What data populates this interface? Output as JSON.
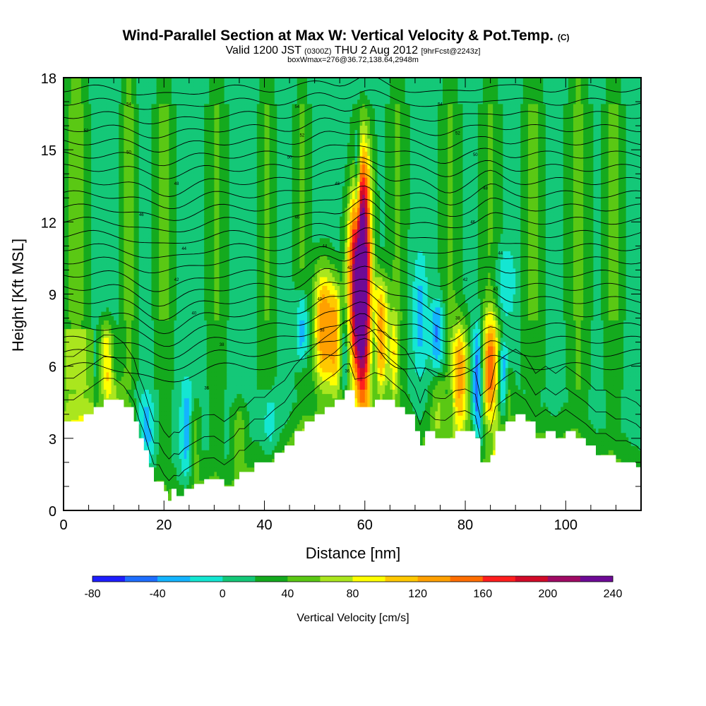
{
  "chart_data": {
    "type": "heatmap",
    "title": "Wind-Parallel Section at Max W: Vertical Velocity & Pot.Temp.",
    "title_suffix": "(C)",
    "subtitle": {
      "main1": "Valid 1200 JST",
      "tz": "(0300Z)",
      "main2": "THU 2 Aug 2012",
      "fcst": "[9hrFcst@2243z]"
    },
    "subtitle2": "boxWmax=276@36.72,138.64,2948m",
    "xlabel": "Distance [nm]",
    "ylabel": "Height [Kft MSL]",
    "xlim": [
      0,
      115
    ],
    "ylim": [
      0,
      18
    ],
    "xticks": [
      0,
      20,
      40,
      60,
      80,
      100
    ],
    "yticks": [
      0,
      3,
      6,
      9,
      12,
      15,
      18
    ],
    "colorbar": {
      "label": "Vertical Velocity [cm/s]",
      "min": -80,
      "max": 240,
      "step": 20,
      "tick_values": [
        -80,
        -40,
        0,
        40,
        80,
        120,
        160,
        200,
        240
      ],
      "colors": [
        "#1e1eff",
        "#1e6eff",
        "#14b4ff",
        "#14e6d2",
        "#14c878",
        "#14aa1e",
        "#5ac814",
        "#aae61e",
        "#ffff00",
        "#ffc800",
        "#ffa000",
        "#ff6e00",
        "#ff1e1e",
        "#d20a28",
        "#a00a64",
        "#6e0a96"
      ]
    },
    "terrain_kft": [
      [
        0,
        3.7
      ],
      [
        2,
        3.7
      ],
      [
        4,
        4.0
      ],
      [
        6,
        4.3
      ],
      [
        8,
        4.6
      ],
      [
        10,
        4.6
      ],
      [
        12,
        4.3
      ],
      [
        14,
        3.7
      ],
      [
        15,
        3.0
      ],
      [
        16,
        2.5
      ],
      [
        17,
        1.8
      ],
      [
        18,
        1.2
      ],
      [
        19,
        1.2
      ],
      [
        20,
        0.8
      ],
      [
        20.8,
        0.4
      ],
      [
        21.5,
        0.9
      ],
      [
        22.5,
        0.6
      ],
      [
        24,
        0.9
      ],
      [
        26,
        1.1
      ],
      [
        28,
        1.3
      ],
      [
        30,
        1.3
      ],
      [
        32,
        1.0
      ],
      [
        34,
        1.3
      ],
      [
        35,
        1.6
      ],
      [
        36,
        1.6
      ],
      [
        38,
        2.0
      ],
      [
        40,
        2.0
      ],
      [
        42,
        2.4
      ],
      [
        44,
        2.7
      ],
      [
        46,
        3.3
      ],
      [
        48,
        3.7
      ],
      [
        50,
        4.0
      ],
      [
        52,
        4.3
      ],
      [
        54,
        4.6
      ],
      [
        56,
        5.0
      ],
      [
        57,
        5.0
      ],
      [
        58,
        4.3
      ],
      [
        60,
        4.3
      ],
      [
        62,
        4.6
      ],
      [
        64,
        4.6
      ],
      [
        66,
        4.3
      ],
      [
        68,
        4.0
      ],
      [
        70,
        3.3
      ],
      [
        71,
        2.7
      ],
      [
        72,
        3.3
      ],
      [
        74,
        3.0
      ],
      [
        76,
        3.0
      ],
      [
        78,
        3.3
      ],
      [
        80,
        3.3
      ],
      [
        82,
        3.0
      ],
      [
        83,
        2.0
      ],
      [
        85,
        2.3
      ],
      [
        86,
        3.3
      ],
      [
        88,
        3.7
      ],
      [
        90,
        4.0
      ],
      [
        92,
        3.7
      ],
      [
        94,
        3.0
      ],
      [
        96,
        3.3
      ],
      [
        98,
        3.0
      ],
      [
        100,
        3.3
      ],
      [
        102,
        3.0
      ],
      [
        104,
        2.7
      ],
      [
        106,
        2.3
      ],
      [
        108,
        2.3
      ],
      [
        110,
        2.0
      ],
      [
        112,
        2.0
      ],
      [
        114,
        1.8
      ],
      [
        115,
        1.6
      ]
    ],
    "updrafts": [
      {
        "x": 59.6,
        "bot": 4.0,
        "top": 15.2,
        "peak": 230,
        "w": 1.7
      },
      {
        "x": 57.8,
        "bot": 5.8,
        "top": 13.0,
        "peak": 120,
        "w": 1.6
      },
      {
        "x": 51.8,
        "bot": 5.0,
        "top": 10.2,
        "peak": 120,
        "w": 2.0
      },
      {
        "x": 54.2,
        "bot": 5.0,
        "top": 9.5,
        "peak": 85,
        "w": 1.2
      },
      {
        "x": 63.2,
        "bot": 5.0,
        "top": 9.7,
        "peak": 115,
        "w": 1.5
      },
      {
        "x": 65.8,
        "bot": 4.6,
        "top": 8.2,
        "peak": 60,
        "w": 0.8
      },
      {
        "x": 79.0,
        "bot": 3.3,
        "top": 7.8,
        "peak": 110,
        "w": 1.6
      },
      {
        "x": 85.0,
        "bot": 3.5,
        "top": 8.2,
        "peak": 115,
        "w": 1.7
      },
      {
        "x": 8.6,
        "bot": 4.8,
        "top": 7.8,
        "peak": 85,
        "w": 1.3
      },
      {
        "x": 35.0,
        "bot": 1.6,
        "top": 4.5,
        "peak": 40,
        "w": 1.4
      },
      {
        "x": 26.0,
        "bot": 1.2,
        "top": 4.5,
        "peak": 40,
        "w": 1.1
      },
      {
        "x": 10.0,
        "bot": 3.6,
        "top": 5.6,
        "peak": 30,
        "w": 2.0
      },
      {
        "x": 74.5,
        "bot": 3.0,
        "top": 5.5,
        "peak": 45,
        "w": 1.5
      },
      {
        "x": 88.5,
        "bot": 4.0,
        "top": 6.0,
        "peak": 35,
        "w": 1.0
      }
    ],
    "downdrafts": [
      {
        "x": 16.5,
        "bot": 1.2,
        "top": 5.0,
        "peak": -30,
        "w": 1.6
      },
      {
        "x": 24.5,
        "bot": 1.0,
        "top": 5.5,
        "peak": -35,
        "w": 1.2
      },
      {
        "x": 47.5,
        "bot": 6.0,
        "top": 9.2,
        "peak": -50,
        "w": 1.2
      },
      {
        "x": 56.0,
        "bot": 4.6,
        "top": 8.5,
        "peak": -25,
        "w": 0.8
      },
      {
        "x": 61.8,
        "bot": 4.6,
        "top": 8.5,
        "peak": -30,
        "w": 0.7
      },
      {
        "x": 74.5,
        "bot": 6.0,
        "top": 8.8,
        "peak": -45,
        "w": 1.3
      },
      {
        "x": 82.5,
        "bot": 3.0,
        "top": 7.8,
        "peak": -65,
        "w": 1.0
      },
      {
        "x": 87.5,
        "bot": 4.0,
        "top": 7.0,
        "peak": -55,
        "w": 0.9
      },
      {
        "x": 71.0,
        "bot": 5.5,
        "top": 10.8,
        "peak": -25,
        "w": 1.4
      },
      {
        "x": 88.0,
        "bot": 8.0,
        "top": 11.0,
        "peak": -20,
        "w": 2.0
      },
      {
        "x": 58.5,
        "bot": 11.0,
        "top": 15.8,
        "peak": -70,
        "w": 0.6
      },
      {
        "x": 41.0,
        "bot": 2.0,
        "top": 5.0,
        "peak": -20,
        "w": 1.5
      }
    ],
    "background_bands": [
      {
        "x": 2.5,
        "amp": 40,
        "w": 2.2
      },
      {
        "x": 13.0,
        "amp": 40,
        "w": 1.5
      },
      {
        "x": 20.0,
        "amp": 32,
        "w": 1.8
      },
      {
        "x": 30.5,
        "amp": 30,
        "w": 1.8
      },
      {
        "x": 40.5,
        "amp": 30,
        "w": 1.6
      },
      {
        "x": 47.5,
        "amp": 28,
        "w": 1.5
      },
      {
        "x": 66.5,
        "amp": 30,
        "w": 1.8
      },
      {
        "x": 77.0,
        "amp": 30,
        "w": 1.8
      },
      {
        "x": 85.0,
        "amp": 28,
        "w": 2.0
      },
      {
        "x": 93.5,
        "amp": 32,
        "w": 2.0
      },
      {
        "x": 102.5,
        "amp": 35,
        "w": 2.2
      },
      {
        "x": 109.5,
        "amp": 32,
        "w": 1.8
      }
    ],
    "theta_contour_labels": [
      {
        "x": 13,
        "y": 16.9,
        "t": "54"
      },
      {
        "x": 46.5,
        "y": 16.8,
        "t": "54"
      },
      {
        "x": 75,
        "y": 16.9,
        "t": "54"
      },
      {
        "x": 4.5,
        "y": 15.8,
        "t": "52"
      },
      {
        "x": 47.5,
        "y": 15.6,
        "t": "52"
      },
      {
        "x": 78.5,
        "y": 15.7,
        "t": "52"
      },
      {
        "x": 13,
        "y": 14.9,
        "t": "50"
      },
      {
        "x": 45,
        "y": 14.7,
        "t": "50"
      },
      {
        "x": 82,
        "y": 14.8,
        "t": "50"
      },
      {
        "x": 22.5,
        "y": 13.6,
        "t": "48"
      },
      {
        "x": 54.5,
        "y": 13.6,
        "t": "48"
      },
      {
        "x": 84,
        "y": 13.4,
        "t": "48"
      },
      {
        "x": 15.5,
        "y": 12.3,
        "t": "46"
      },
      {
        "x": 46.5,
        "y": 12.2,
        "t": "46"
      },
      {
        "x": 81.5,
        "y": 12.0,
        "t": "46"
      },
      {
        "x": 24,
        "y": 10.9,
        "t": "44"
      },
      {
        "x": 52,
        "y": 11.0,
        "t": "44"
      },
      {
        "x": 87,
        "y": 10.7,
        "t": "44"
      },
      {
        "x": 22.5,
        "y": 9.6,
        "t": "42"
      },
      {
        "x": 57,
        "y": 10.1,
        "t": "42"
      },
      {
        "x": 80,
        "y": 9.6,
        "t": "42"
      },
      {
        "x": 26,
        "y": 8.2,
        "t": "40"
      },
      {
        "x": 51,
        "y": 8.8,
        "t": "40"
      },
      {
        "x": 86,
        "y": 9.2,
        "t": "40"
      },
      {
        "x": 31.5,
        "y": 6.9,
        "t": "38"
      },
      {
        "x": 51.5,
        "y": 7.5,
        "t": "38"
      },
      {
        "x": 78.5,
        "y": 8.0,
        "t": "38"
      },
      {
        "x": 28.5,
        "y": 5.1,
        "t": "36"
      },
      {
        "x": 56.5,
        "y": 5.8,
        "t": "36"
      }
    ]
  }
}
